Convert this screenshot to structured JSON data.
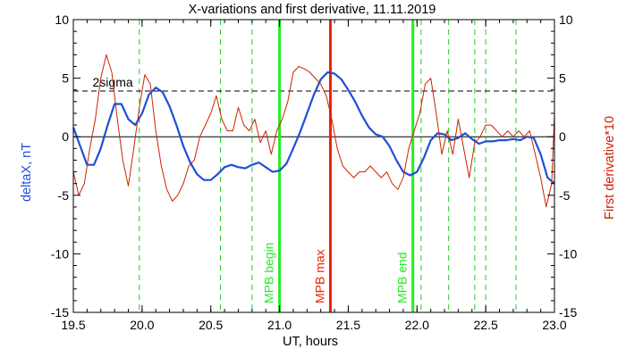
{
  "chart_data": {
    "type": "line",
    "title": "X-variations and first derivative, 11.11.2019",
    "xlabel": "UT, hours",
    "ylabel_left": "deltaX, nT",
    "ylabel_right": "First derivative*10",
    "xlim": [
      19.5,
      23.0
    ],
    "ylim": [
      -15,
      10
    ],
    "xticks": [
      "19.5",
      "20.0",
      "20.5",
      "21.0",
      "21.5",
      "22.0",
      "22.5",
      "23.0"
    ],
    "yticks": [
      "-15",
      "-10",
      "-5",
      "0",
      "5",
      "10"
    ],
    "sigma_label": "2sigma",
    "sigma_level": 3.9,
    "colors": {
      "deltaX": "#1f4fd6",
      "derivative": "#cc2200",
      "mpb": "#22ee22",
      "max": "#ee2200",
      "pulse": "#22cc22"
    },
    "vertical_markers": [
      {
        "x": 21.0,
        "label": "MPB begin",
        "kind": "mpb"
      },
      {
        "x": 21.37,
        "label": "MPB max",
        "kind": "max"
      },
      {
        "x": 21.97,
        "label": "MPB end",
        "kind": "mpb"
      }
    ],
    "pulse_lines": [
      19.98,
      20.57,
      20.8,
      22.03,
      22.23,
      22.42,
      22.5,
      22.72
    ],
    "series": [
      {
        "name": "deltaX",
        "key": "deltaX",
        "x": [
          19.5,
          19.55,
          19.6,
          19.65,
          19.7,
          19.75,
          19.8,
          19.85,
          19.9,
          19.95,
          20.0,
          20.05,
          20.1,
          20.15,
          20.2,
          20.25,
          20.3,
          20.35,
          20.4,
          20.45,
          20.5,
          20.55,
          20.6,
          20.65,
          20.7,
          20.75,
          20.8,
          20.85,
          20.9,
          20.95,
          21.0,
          21.05,
          21.1,
          21.15,
          21.2,
          21.25,
          21.3,
          21.35,
          21.4,
          21.45,
          21.5,
          21.55,
          21.6,
          21.65,
          21.7,
          21.75,
          21.8,
          21.85,
          21.9,
          21.95,
          22.0,
          22.05,
          22.1,
          22.15,
          22.2,
          22.25,
          22.3,
          22.35,
          22.4,
          22.45,
          22.5,
          22.55,
          22.6,
          22.65,
          22.7,
          22.75,
          22.8,
          22.85,
          22.9,
          22.95,
          23.0
        ],
        "values": [
          0.8,
          -0.8,
          -2.4,
          -2.4,
          -1.0,
          1.0,
          2.8,
          2.8,
          1.5,
          1.0,
          2.0,
          3.6,
          4.2,
          3.8,
          2.6,
          1.0,
          -0.8,
          -2.2,
          -3.2,
          -3.7,
          -3.7,
          -3.2,
          -2.6,
          -2.4,
          -2.6,
          -2.7,
          -2.4,
          -2.2,
          -2.6,
          -3.0,
          -2.9,
          -2.3,
          -1.0,
          0.4,
          2.0,
          3.6,
          4.9,
          5.5,
          5.4,
          4.9,
          4.0,
          3.0,
          1.8,
          0.8,
          0.2,
          0.0,
          -0.8,
          -2.0,
          -3.0,
          -3.3,
          -3.0,
          -1.8,
          -0.3,
          0.3,
          0.2,
          -0.3,
          -0.1,
          0.3,
          -0.2,
          -0.6,
          -0.4,
          -0.4,
          -0.3,
          -0.3,
          -0.2,
          -0.3,
          0.0,
          -0.1,
          -1.5,
          -3.5,
          -4.0
        ]
      },
      {
        "name": "First derivative*10",
        "key": "derivative",
        "x": [
          19.5,
          19.54,
          19.58,
          19.62,
          19.66,
          19.7,
          19.74,
          19.78,
          19.82,
          19.86,
          19.9,
          19.94,
          19.98,
          20.02,
          20.06,
          20.1,
          20.14,
          20.18,
          20.22,
          20.26,
          20.3,
          20.34,
          20.38,
          20.42,
          20.46,
          20.5,
          20.54,
          20.58,
          20.62,
          20.66,
          20.7,
          20.74,
          20.78,
          20.82,
          20.86,
          20.9,
          20.94,
          20.98,
          21.02,
          21.06,
          21.1,
          21.14,
          21.18,
          21.22,
          21.26,
          21.3,
          21.34,
          21.38,
          21.42,
          21.46,
          21.5,
          21.54,
          21.58,
          21.62,
          21.66,
          21.7,
          21.74,
          21.78,
          21.82,
          21.86,
          21.9,
          21.94,
          21.98,
          22.02,
          22.06,
          22.1,
          22.14,
          22.18,
          22.22,
          22.26,
          22.3,
          22.34,
          22.38,
          22.42,
          22.46,
          22.5,
          22.54,
          22.58,
          22.62,
          22.66,
          22.7,
          22.74,
          22.78,
          22.82,
          22.86,
          22.9,
          22.94,
          22.98,
          23.0
        ],
        "values": [
          -3.0,
          -5.0,
          -4.0,
          -1.0,
          1.5,
          5.0,
          7.0,
          5.5,
          1.5,
          -2.0,
          -4.2,
          -1.0,
          2.5,
          5.3,
          4.5,
          0.5,
          -2.5,
          -4.5,
          -5.5,
          -5.0,
          -4.0,
          -2.5,
          -2.0,
          0.0,
          1.0,
          2.0,
          3.5,
          1.5,
          0.5,
          0.5,
          2.5,
          1.0,
          0.5,
          1.5,
          -0.5,
          0.5,
          -1.5,
          0.5,
          1.5,
          3.0,
          5.5,
          6.0,
          5.8,
          5.5,
          5.0,
          4.5,
          3.5,
          1.5,
          -1.0,
          -2.5,
          -3.0,
          -3.5,
          -3.0,
          -3.0,
          -2.5,
          -3.0,
          -3.5,
          -3.0,
          -4.0,
          -4.5,
          -3.5,
          -1.0,
          0.5,
          2.0,
          4.5,
          5.0,
          2.0,
          -1.5,
          0.5,
          -1.5,
          1.5,
          -1.0,
          -3.5,
          -0.5,
          0.0,
          1.0,
          1.0,
          0.5,
          0.0,
          0.5,
          0.0,
          0.5,
          0.0,
          0.5,
          -1.5,
          -3.5,
          -6.0,
          -4.0,
          2.0
        ]
      }
    ]
  }
}
